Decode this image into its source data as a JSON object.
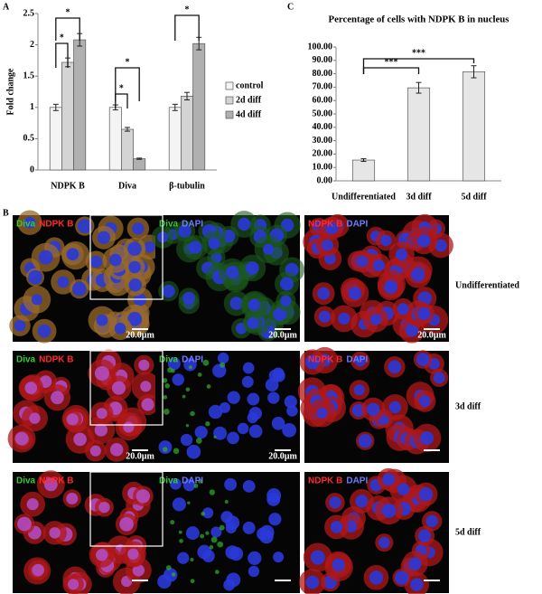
{
  "chart_data": [
    {
      "type": "bar",
      "panel_label": "A",
      "ylabel": "Fold change",
      "categories": [
        "NDPK B",
        "Diva",
        "β-tubulin"
      ],
      "series": [
        {
          "name": "control",
          "color": "#f4f4f4",
          "values": [
            1.0,
            1.0,
            1.0
          ],
          "errors": [
            0.05,
            0.04,
            0.05
          ]
        },
        {
          "name": "2d diff",
          "color": "#d4d4d4",
          "values": [
            1.72,
            0.65,
            1.18
          ],
          "errors": [
            0.07,
            0.03,
            0.06
          ]
        },
        {
          "name": "4d diff",
          "color": "#b0b0b0",
          "values": [
            2.08,
            0.18,
            2.02
          ],
          "errors": [
            0.1,
            0.01,
            0.1
          ]
        }
      ],
      "ylim": [
        0,
        2.5
      ],
      "yticks": [
        0,
        0.5,
        1,
        1.5,
        2,
        2.5
      ],
      "annotations": [
        "*",
        "*",
        "*",
        "*",
        "*"
      ],
      "legend": "right"
    },
    {
      "type": "bar",
      "panel_label": "C",
      "title": "Percentage  of cells with NDPK B in nucleus",
      "categories": [
        "Undifferentiated",
        "3d diff",
        "5d diff"
      ],
      "values": [
        15.5,
        69.5,
        81.5
      ],
      "errors": [
        1,
        4,
        4.5
      ],
      "color": "#e6e6e6",
      "ylim": [
        0,
        100
      ],
      "yticks": [
        {
          "value": 0,
          "label": "0.00"
        },
        {
          "value": 10,
          "label": "10.00"
        },
        {
          "value": 20,
          "label": "20.00"
        },
        {
          "value": 30,
          "label": "30.00"
        },
        {
          "value": 40,
          "label": "40.00"
        },
        {
          "value": 50,
          "label": "50.00"
        },
        {
          "value": 60,
          "label": "60.00"
        },
        {
          "value": 70,
          "label": "70.00"
        },
        {
          "value": 80,
          "label": "80.00"
        },
        {
          "value": 90,
          "label": "90.00"
        },
        {
          "value": 100,
          "label": "100.00"
        }
      ],
      "annotations": [
        "***",
        "***"
      ]
    }
  ],
  "figure": {
    "panel_label": "B",
    "rows": [
      {
        "label": "Undifferentiated",
        "scale_labels": [
          "20.0µm",
          "20.0µm",
          "20.0µm"
        ]
      },
      {
        "label": "3d diff",
        "scale_labels": [
          "20.0µm",
          "20.0µm"
        ]
      },
      {
        "label": "5d diff",
        "scale_labels": []
      }
    ],
    "columns": [
      [
        {
          "name": "Diva",
          "color": "#33cc33"
        },
        {
          "name": "NDPK B",
          "color": "#ff2a2a"
        }
      ],
      [
        {
          "name": "Diva",
          "color": "#33cc33"
        },
        {
          "name": "DAPI",
          "color": "#6f7cff"
        }
      ],
      [
        {
          "name": "NDPK B",
          "color": "#ff2a2a"
        },
        {
          "name": "DAPI",
          "color": "#6f7cff"
        }
      ]
    ]
  }
}
